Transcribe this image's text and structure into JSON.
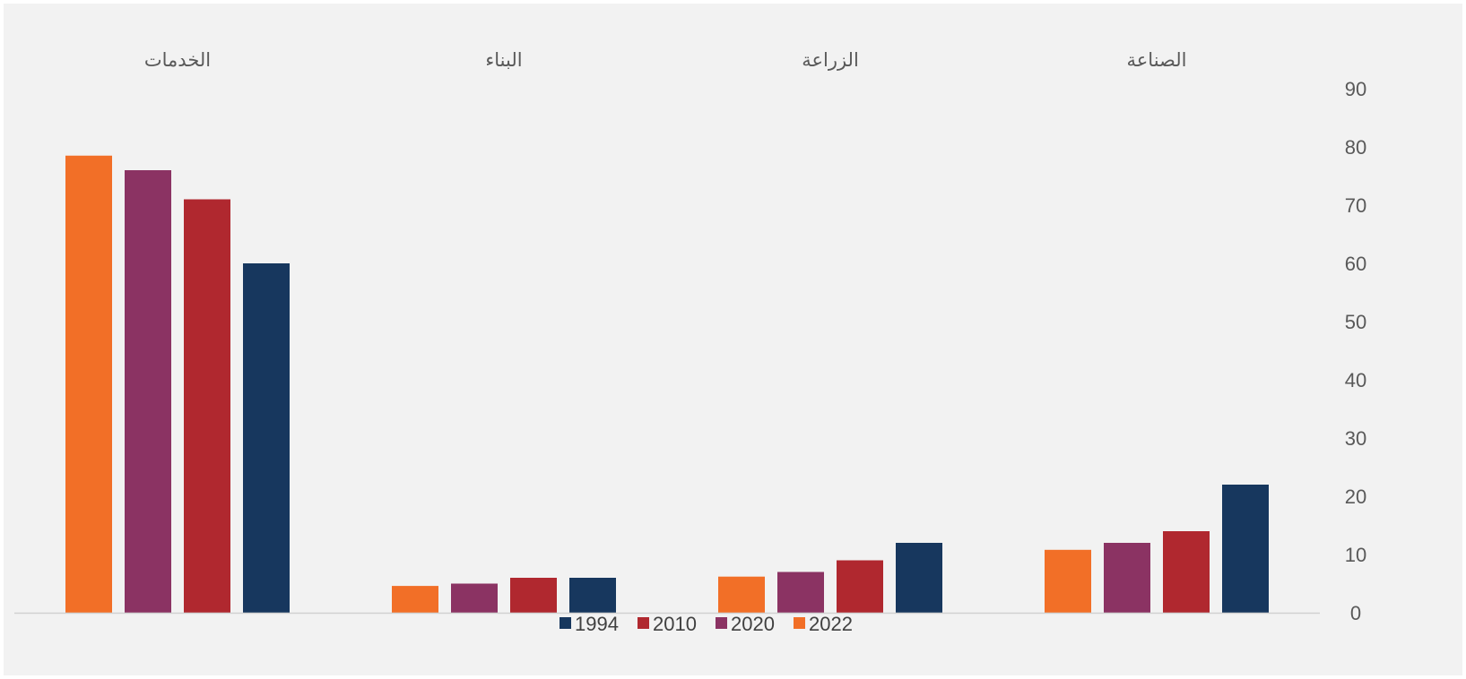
{
  "chart_data": {
    "type": "bar",
    "title": "",
    "xlabel": "",
    "ylabel": "",
    "categories": [
      "الصناعة",
      "الزراعة",
      "البناء",
      "الخدمات"
    ],
    "series": [
      {
        "name": "1994",
        "color": "#17375e",
        "values": [
          22,
          12,
          6,
          60
        ]
      },
      {
        "name": "2010",
        "color": "#b0282f",
        "values": [
          14,
          9,
          6,
          71
        ]
      },
      {
        "name": "2020",
        "color": "#8b3363",
        "values": [
          12,
          7,
          5,
          76
        ]
      },
      {
        "name": "2022",
        "color": "#f26f27",
        "values": [
          10.8,
          6.2,
          4.6,
          78.5
        ]
      }
    ],
    "ylim": [
      0,
      90
    ],
    "yticks": [
      0,
      10,
      20,
      30,
      40,
      50,
      60,
      70,
      80,
      90
    ],
    "y_axis_side": "right",
    "category_order": "right-to-left",
    "category_labels_position": "top",
    "grid": false,
    "legend": {
      "position": "bottom",
      "items": [
        "1994",
        "2010",
        "2020",
        "2022"
      ]
    }
  }
}
